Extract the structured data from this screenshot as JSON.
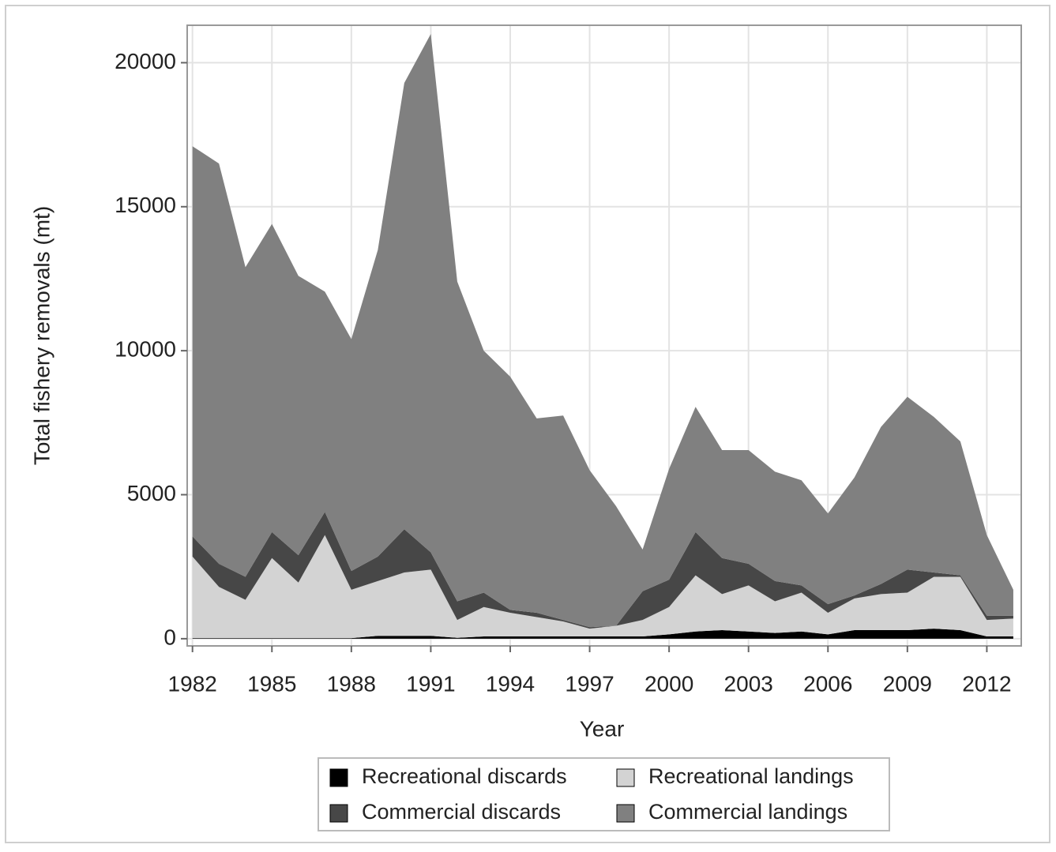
{
  "chart_data": {
    "type": "stacked_area",
    "x_label": "Year",
    "y_label": "Total fishery removals (mt)",
    "x": [
      1982,
      1983,
      1984,
      1985,
      1986,
      1987,
      1988,
      1989,
      1990,
      1991,
      1992,
      1993,
      1994,
      1995,
      1996,
      1997,
      1998,
      1999,
      2000,
      2001,
      2002,
      2003,
      2004,
      2005,
      2006,
      2007,
      2008,
      2009,
      2010,
      2011,
      2012,
      2013
    ],
    "series": [
      {
        "name": "Recreational discards",
        "color": "#000000",
        "values": [
          20,
          20,
          20,
          20,
          20,
          20,
          20,
          100,
          100,
          100,
          30,
          80,
          80,
          80,
          80,
          80,
          80,
          80,
          150,
          250,
          300,
          250,
          200,
          250,
          150,
          300,
          300,
          300,
          350,
          300,
          80,
          80
        ]
      },
      {
        "name": "Recreational landings",
        "color": "#d3d3d3",
        "values": [
          2830,
          1780,
          1330,
          2780,
          1930,
          3580,
          1680,
          1900,
          2200,
          2300,
          620,
          1020,
          820,
          670,
          520,
          270,
          370,
          570,
          950,
          1950,
          1250,
          1600,
          1100,
          1350,
          750,
          1100,
          1250,
          1300,
          1800,
          1850,
          570,
          620
        ]
      },
      {
        "name": "Commercial discards",
        "color": "#474747",
        "values": [
          700,
          800,
          800,
          900,
          950,
          800,
          650,
          850,
          1500,
          600,
          650,
          500,
          100,
          150,
          50,
          50,
          0,
          1000,
          950,
          1500,
          1250,
          750,
          700,
          250,
          300,
          100,
          350,
          800,
          150,
          50,
          150,
          100
        ]
      },
      {
        "name": "Commercial landings",
        "color": "#808080",
        "values": [
          13550,
          13900,
          10750,
          10700,
          9700,
          7650,
          8050,
          10650,
          15500,
          18000,
          11100,
          8400,
          8100,
          6750,
          7100,
          5450,
          4150,
          1450,
          3850,
          4350,
          3750,
          3950,
          3800,
          3650,
          3150,
          4100,
          5450,
          6000,
          5400,
          4650,
          2800,
          900
        ]
      }
    ],
    "xlim": [
      1981.8,
      2013.3
    ],
    "xticks": [
      1982,
      1985,
      1988,
      1991,
      1994,
      1997,
      2000,
      2003,
      2006,
      2009,
      2012
    ],
    "ylim": [
      -250,
      21300
    ],
    "yticks": [
      0,
      5000,
      10000,
      15000,
      20000
    ],
    "grid": true,
    "legend": "bottom"
  }
}
